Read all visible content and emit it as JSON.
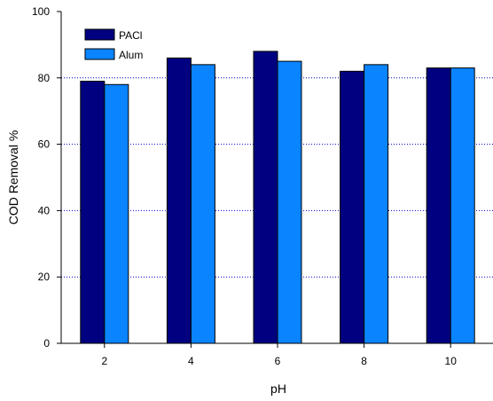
{
  "chart_data": {
    "type": "bar",
    "categories": [
      "2",
      "4",
      "6",
      "8",
      "10"
    ],
    "series": [
      {
        "name": "PACl",
        "values": [
          79,
          86,
          88,
          82,
          83
        ],
        "color": "#000080"
      },
      {
        "name": "Alum",
        "values": [
          78,
          84,
          85,
          84,
          83
        ],
        "color": "#0A84FF"
      }
    ],
    "xlabel": "pH",
    "ylabel": "COD Removal %",
    "ylim": [
      0,
      100
    ],
    "yticks": [
      0,
      20,
      40,
      60,
      80,
      100
    ],
    "grid": {
      "y": true,
      "style": "dotted",
      "color": "#0000CC"
    },
    "legend": {
      "position": "top-left"
    }
  }
}
